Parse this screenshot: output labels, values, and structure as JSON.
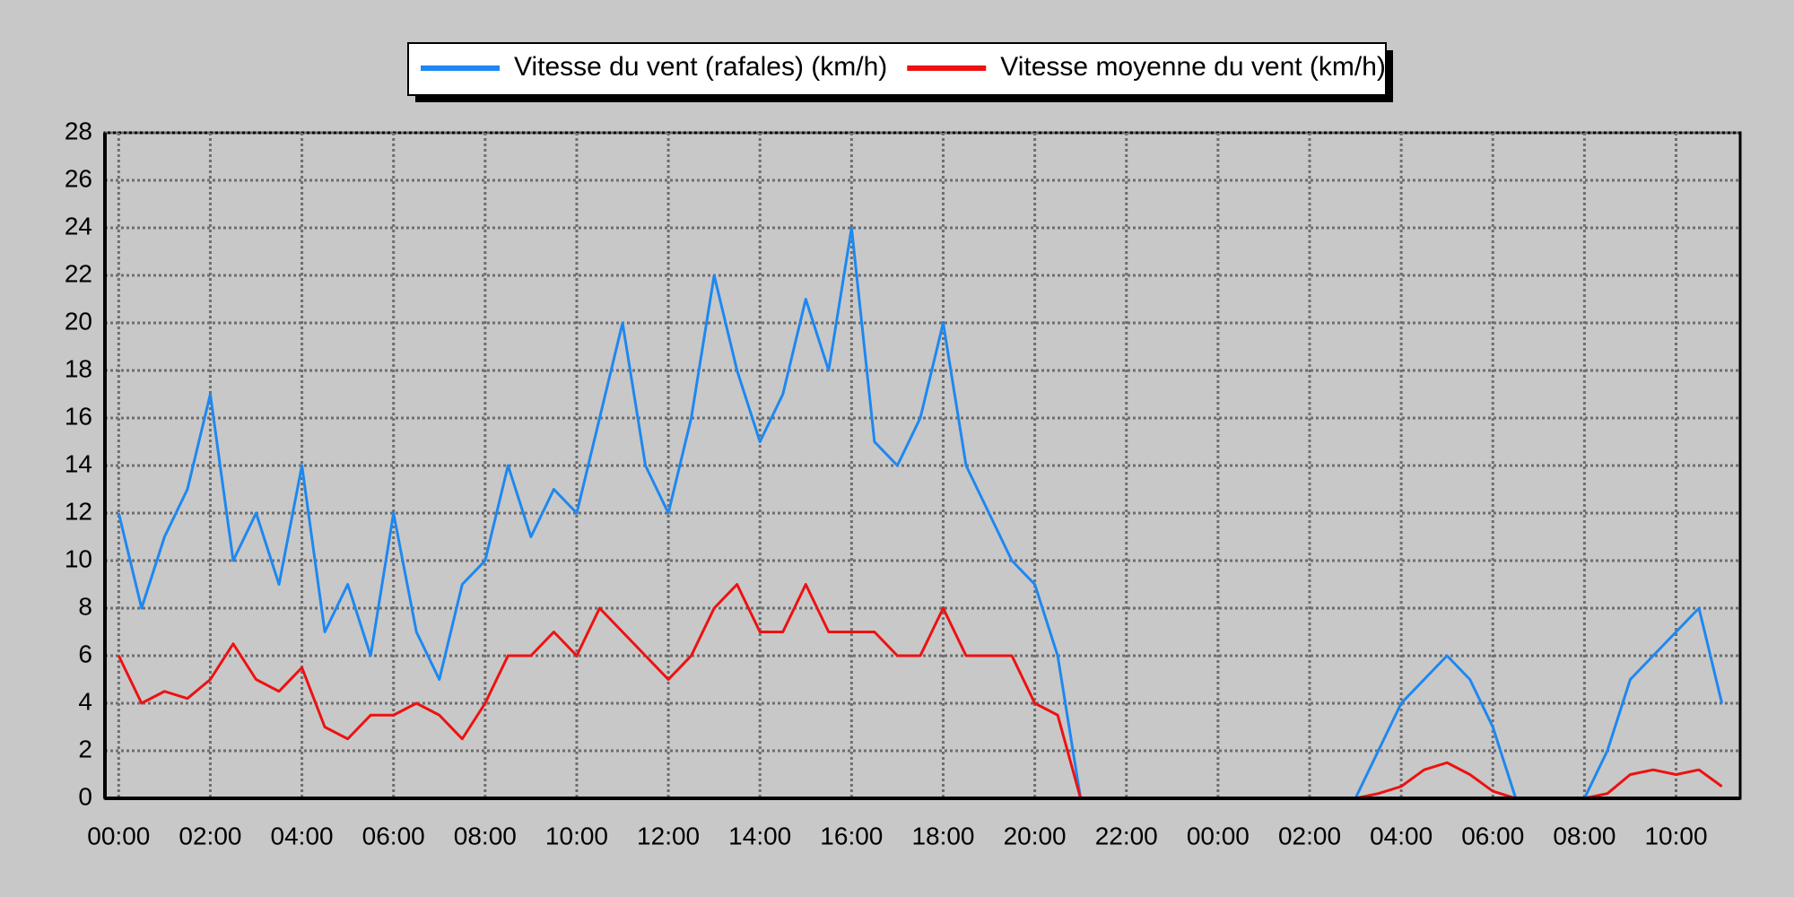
{
  "chart_data": {
    "type": "line",
    "x": [
      0,
      0.5,
      1,
      1.5,
      2,
      2.5,
      3,
      3.5,
      4,
      4.5,
      5,
      5.5,
      6,
      6.5,
      7,
      7.5,
      8,
      8.5,
      9,
      9.5,
      10,
      10.5,
      11,
      11.5,
      12,
      12.5,
      13,
      13.5,
      14,
      14.5,
      15,
      15.5,
      16,
      16.5,
      17,
      17.5,
      18,
      18.5,
      19,
      19.5,
      20,
      20.5,
      21,
      21.5,
      22,
      22.5,
      23,
      23.5,
      24,
      24.5,
      25,
      25.5,
      26,
      26.5,
      27,
      27.5,
      28,
      28.5,
      29,
      29.5,
      30,
      30.5,
      31,
      31.5,
      32,
      32.5,
      33,
      33.5,
      34,
      34.5,
      35
    ],
    "series": [
      {
        "name": "Vitesse du vent (rafales) (km/h)",
        "color": "#1e88f0",
        "values": [
          12,
          8,
          11,
          13,
          17,
          10,
          12,
          9,
          14,
          7,
          9,
          6,
          12,
          7,
          5,
          9,
          10,
          14,
          11,
          13,
          12,
          16,
          20,
          14,
          12,
          16,
          22,
          18,
          15,
          17,
          21,
          18,
          24,
          15,
          14,
          16,
          20,
          14,
          12,
          10,
          9,
          6,
          0,
          0,
          0,
          0,
          0,
          0,
          0,
          0,
          0,
          0,
          0,
          0,
          0,
          2,
          4,
          5,
          6,
          5,
          3,
          0,
          0,
          0,
          0,
          2,
          5,
          6,
          7,
          8,
          4
        ]
      },
      {
        "name": "Vitesse moyenne du vent (km/h)",
        "color": "#ee1111",
        "values": [
          6,
          4,
          4.5,
          4.2,
          5,
          6.5,
          5,
          4.5,
          5.5,
          3,
          2.5,
          3.5,
          3.5,
          4,
          3.5,
          2.5,
          4,
          6,
          6,
          7,
          6,
          8,
          7,
          6,
          5,
          6,
          8,
          9,
          7,
          7,
          9,
          7,
          7,
          7,
          6,
          6,
          8,
          6,
          6,
          6,
          4,
          3.5,
          0,
          0,
          0,
          0,
          0,
          0,
          0,
          0,
          0,
          0,
          0,
          0,
          0,
          0.2,
          0.5,
          1.2,
          1.5,
          1,
          0.3,
          0,
          0,
          0,
          0,
          0.2,
          1,
          1.2,
          1,
          1.2,
          0.5
        ]
      }
    ],
    "xlim": [
      -0.3,
      35.4
    ],
    "xticks": [
      {
        "value": 0,
        "label": "00:00"
      },
      {
        "value": 2,
        "label": "02:00"
      },
      {
        "value": 4,
        "label": "04:00"
      },
      {
        "value": 6,
        "label": "06:00"
      },
      {
        "value": 8,
        "label": "08:00"
      },
      {
        "value": 10,
        "label": "10:00"
      },
      {
        "value": 12,
        "label": "12:00"
      },
      {
        "value": 14,
        "label": "14:00"
      },
      {
        "value": 16,
        "label": "16:00"
      },
      {
        "value": 18,
        "label": "18:00"
      },
      {
        "value": 20,
        "label": "20:00"
      },
      {
        "value": 22,
        "label": "22:00"
      },
      {
        "value": 24,
        "label": "00:00"
      },
      {
        "value": 26,
        "label": "02:00"
      },
      {
        "value": 28,
        "label": "04:00"
      },
      {
        "value": 30,
        "label": "06:00"
      },
      {
        "value": 32,
        "label": "08:00"
      },
      {
        "value": 34,
        "label": "10:00"
      }
    ],
    "ylim": [
      0,
      28
    ],
    "yticks": [
      0,
      2,
      4,
      6,
      8,
      10,
      12,
      14,
      16,
      18,
      20,
      22,
      24,
      26,
      28
    ],
    "grid": true,
    "legend": "top"
  }
}
